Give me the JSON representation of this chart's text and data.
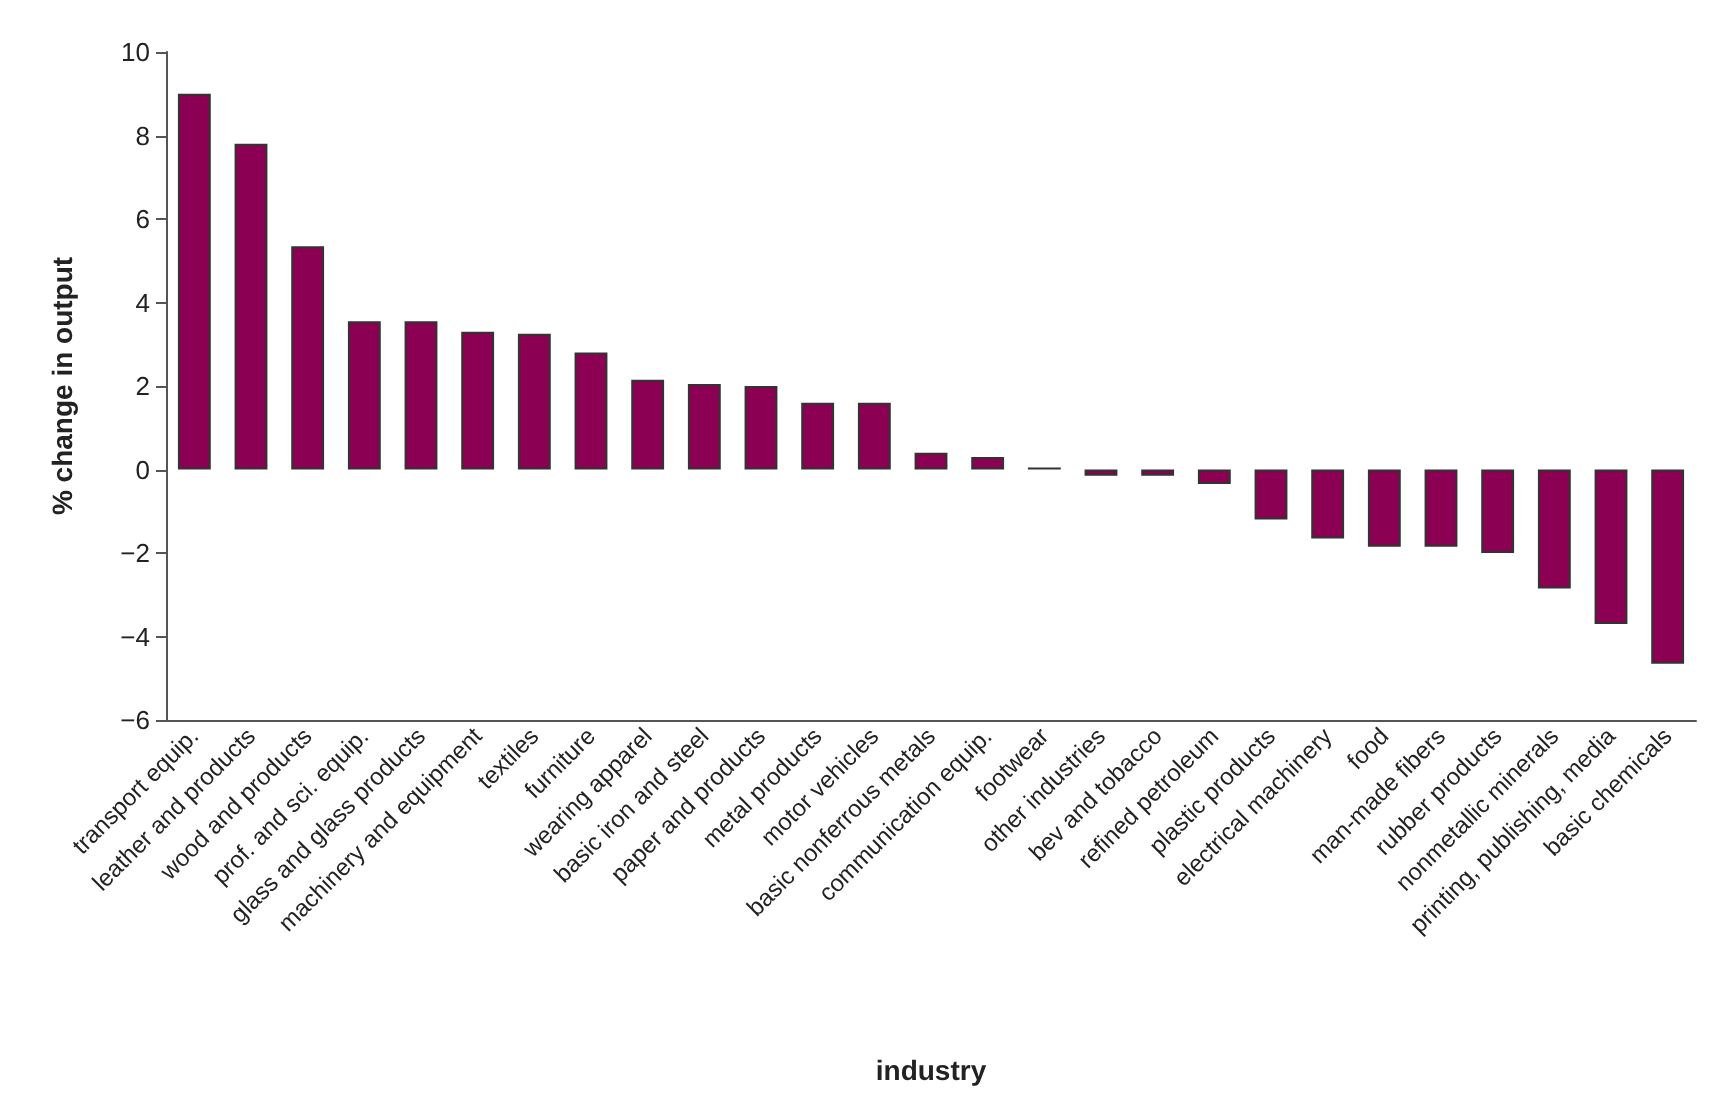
{
  "chart_data": {
    "type": "bar",
    "xlabel": "industry",
    "ylabel": "% change in output",
    "categories": [
      "transport equip.",
      "leather and products",
      "wood and products",
      "prof. and sci. equip.",
      "glass and glass products",
      "machinery and equipment",
      "textiles",
      "furniture",
      "wearing apparel",
      "basic iron and steel",
      "paper and products",
      "metal products",
      "motor vehicles",
      "basic nonferrous metals",
      "communication equip.",
      "footwear",
      "other industries",
      "bev and tobacco",
      "refined petroleum",
      "plastic products",
      "electrical machinery",
      "food",
      "man-made fibers",
      "rubber products",
      "nonmetallic minerals",
      "printing, publishing, media",
      "basic chemicals"
    ],
    "values": [
      9.0,
      7.8,
      5.35,
      3.55,
      3.55,
      3.3,
      3.25,
      2.8,
      2.15,
      2.05,
      2.0,
      1.6,
      1.6,
      0.4,
      0.3,
      0.05,
      -0.15,
      -0.15,
      -0.35,
      -1.2,
      -1.65,
      -1.85,
      -1.85,
      -2.0,
      -2.85,
      -3.7,
      -4.65
    ],
    "color": "#8b0052",
    "ylim": [
      -6,
      10
    ],
    "yticks": [
      -6,
      -4,
      -2,
      0,
      2,
      4,
      6,
      8,
      10
    ]
  }
}
